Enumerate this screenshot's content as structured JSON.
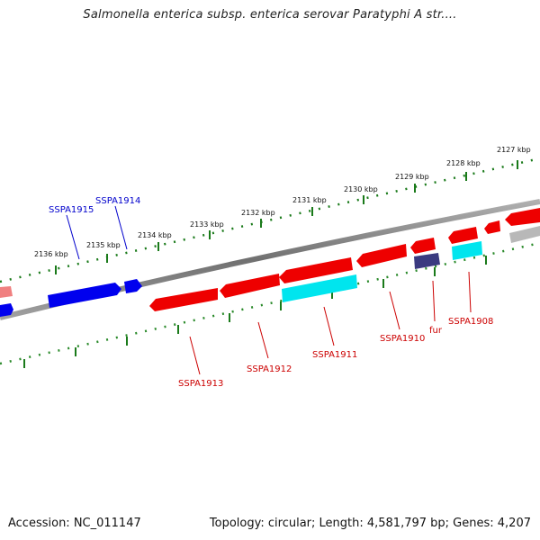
{
  "title": "Salmonella enterica subsp. enterica serovar Paratyphi A str....",
  "footer": {
    "accession": "Accession: NC_011147",
    "summary": "Topology: circular; Length: 4,581,797 bp; Genes: 4,207"
  },
  "ruler": {
    "unit": "kbp",
    "ticks": [
      "2127 kbp",
      "2128 kbp",
      "2129 kbp",
      "2130 kbp",
      "2131 kbp",
      "2132 kbp",
      "2133 kbp",
      "2134 kbp",
      "2135 kbp",
      "2136 kbp"
    ]
  },
  "genes": {
    "forward_labels": [
      "SSPA1915",
      "SSPA1914"
    ],
    "reverse_labels": [
      "SSPA1913",
      "SSPA1912",
      "SSPA1911",
      "SSPA1910",
      "fur",
      "SSPA1908"
    ]
  },
  "colors": {
    "forward_gene": "#0000ee",
    "reverse_gene": "#ee0000",
    "reverse_gene_alt": "#00e5ee",
    "fur_gene": "#3a3a80",
    "forward_label": "#0000cc",
    "reverse_label": "#cc0000",
    "tick_major": "#1a7a1a",
    "tick_minor": "#2a8a2a",
    "backbone": "#808080"
  }
}
